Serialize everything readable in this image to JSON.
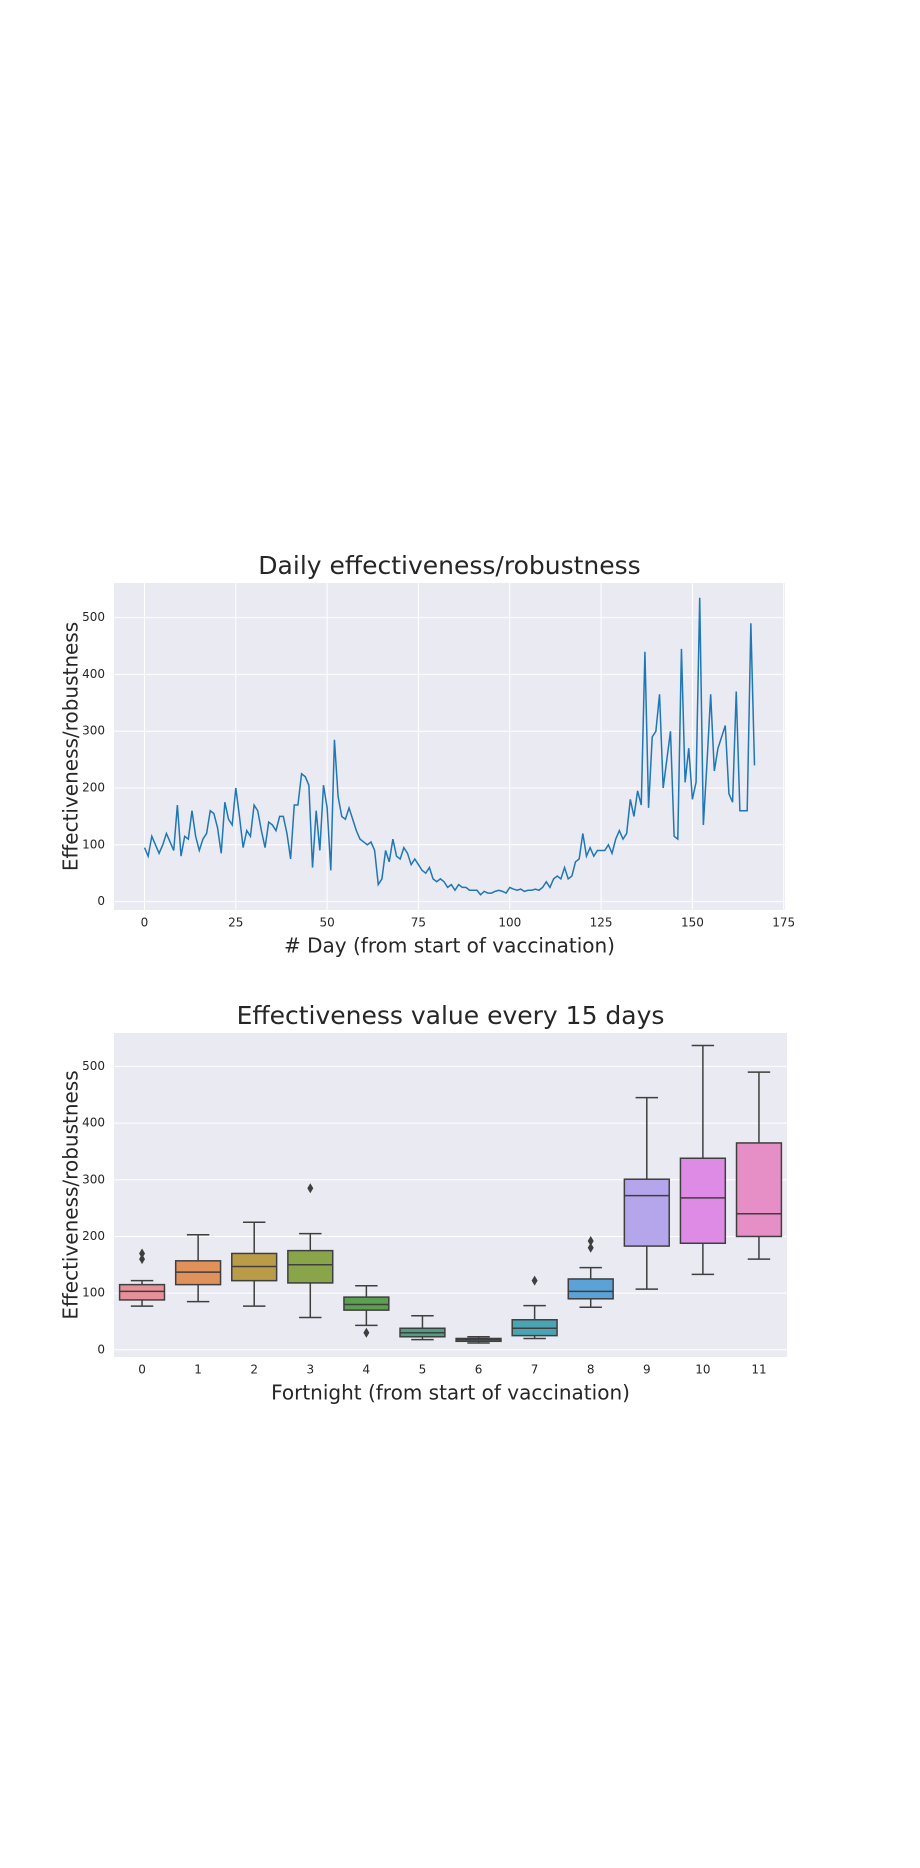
{
  "chart_data": [
    {
      "type": "line",
      "title": "Daily effectiveness/robustness",
      "xlabel": "# Day (from start of vaccination)",
      "ylabel": "Effectiveness/robustness",
      "x": [
        0,
        1,
        2,
        3,
        4,
        5,
        6,
        7,
        8,
        9,
        10,
        11,
        12,
        13,
        14,
        15,
        16,
        17,
        18,
        19,
        20,
        21,
        22,
        23,
        24,
        25,
        26,
        27,
        28,
        29,
        30,
        31,
        32,
        33,
        34,
        35,
        36,
        37,
        38,
        39,
        40,
        41,
        42,
        43,
        44,
        45,
        46,
        47,
        48,
        49,
        50,
        51,
        52,
        53,
        54,
        55,
        56,
        57,
        58,
        59,
        60,
        61,
        62,
        63,
        64,
        65,
        66,
        67,
        68,
        69,
        70,
        71,
        72,
        73,
        74,
        75,
        76,
        77,
        78,
        79,
        80,
        81,
        82,
        83,
        84,
        85,
        86,
        87,
        88,
        89,
        90,
        91,
        92,
        93,
        94,
        95,
        96,
        97,
        98,
        99,
        100,
        101,
        102,
        103,
        104,
        105,
        106,
        107,
        108,
        109,
        110,
        111,
        112,
        113,
        114,
        115,
        116,
        117,
        118,
        119,
        120,
        121,
        122,
        123,
        124,
        125,
        126,
        127,
        128,
        129,
        130,
        131,
        132,
        133,
        134,
        135,
        136,
        137,
        138,
        139,
        140,
        141,
        142,
        143,
        144,
        145,
        146,
        147,
        148,
        149,
        150,
        151,
        152,
        153,
        154,
        155,
        156,
        157,
        158,
        159,
        160,
        161,
        162,
        163,
        164,
        165,
        166,
        167
      ],
      "values": [
        95,
        80,
        115,
        100,
        85,
        100,
        120,
        105,
        90,
        170,
        80,
        115,
        110,
        160,
        115,
        90,
        110,
        120,
        160,
        155,
        130,
        85,
        175,
        145,
        135,
        200,
        150,
        95,
        125,
        115,
        170,
        160,
        125,
        95,
        140,
        135,
        125,
        150,
        150,
        120,
        75,
        170,
        170,
        225,
        220,
        205,
        60,
        160,
        90,
        205,
        165,
        55,
        285,
        185,
        150,
        145,
        165,
        145,
        125,
        110,
        105,
        100,
        105,
        90,
        30,
        40,
        90,
        70,
        110,
        80,
        75,
        95,
        85,
        65,
        75,
        65,
        55,
        50,
        60,
        40,
        35,
        40,
        35,
        25,
        30,
        20,
        30,
        25,
        25,
        20,
        20,
        20,
        12,
        18,
        15,
        15,
        18,
        20,
        18,
        15,
        25,
        22,
        20,
        22,
        18,
        20,
        20,
        22,
        20,
        25,
        35,
        25,
        40,
        45,
        40,
        60,
        40,
        45,
        70,
        75,
        120,
        80,
        95,
        80,
        90,
        90,
        90,
        100,
        85,
        110,
        125,
        110,
        120,
        180,
        150,
        195,
        170,
        440,
        165,
        290,
        300,
        365,
        200,
        250,
        300,
        115,
        110,
        445,
        210,
        270,
        180,
        210,
        535,
        135,
        245,
        365,
        230,
        270,
        290,
        310,
        190,
        175,
        370,
        160,
        160,
        160,
        490,
        240
      ],
      "color": "#1f77b4",
      "xlim": [
        -8.35,
        175.35
      ],
      "xticks": [
        0,
        25,
        50,
        75,
        100,
        125,
        150,
        175
      ],
      "ylim": [
        -14.8,
        561
      ],
      "yticks": [
        0,
        100,
        200,
        300,
        400,
        500
      ],
      "grid": true
    },
    {
      "type": "box",
      "title": "Effectiveness value every 15 days",
      "xlabel": "Fortnight (from start of vaccination)",
      "ylabel": "Effectiveness/robustness",
      "categories": [
        "0",
        "1",
        "2",
        "3",
        "4",
        "5",
        "6",
        "7",
        "8",
        "9",
        "10",
        "11"
      ],
      "boxes": [
        {
          "whislo": 77,
          "q1": 88,
          "med": 103,
          "q3": 115,
          "whishi": 122,
          "fliers": [
            160,
            170
          ]
        },
        {
          "whislo": 85,
          "q1": 115,
          "med": 137,
          "q3": 157,
          "whishi": 203,
          "fliers": []
        },
        {
          "whislo": 77,
          "q1": 122,
          "med": 147,
          "q3": 170,
          "whishi": 225,
          "fliers": []
        },
        {
          "whislo": 57,
          "q1": 118,
          "med": 150,
          "q3": 175,
          "whishi": 205,
          "fliers": [
            285
          ]
        },
        {
          "whislo": 43,
          "q1": 70,
          "med": 80,
          "q3": 93,
          "whishi": 113,
          "fliers": [
            30
          ]
        },
        {
          "whislo": 18,
          "q1": 23,
          "med": 30,
          "q3": 38,
          "whishi": 60,
          "fliers": []
        },
        {
          "whislo": 12,
          "q1": 15,
          "med": 18,
          "q3": 20,
          "whishi": 23,
          "fliers": []
        },
        {
          "whislo": 20,
          "q1": 25,
          "med": 38,
          "q3": 53,
          "whishi": 78,
          "fliers": [
            122
          ]
        },
        {
          "whislo": 75,
          "q1": 90,
          "med": 103,
          "q3": 125,
          "whishi": 145,
          "fliers": [
            180,
            192
          ]
        },
        {
          "whislo": 107,
          "q1": 183,
          "med": 272,
          "q3": 301,
          "whishi": 445,
          "fliers": []
        },
        {
          "whislo": 133,
          "q1": 188,
          "med": 268,
          "q3": 338,
          "whishi": 537,
          "fliers": []
        },
        {
          "whislo": 160,
          "q1": 200,
          "med": 240,
          "q3": 365,
          "whishi": 490,
          "fliers": []
        }
      ],
      "colors": [
        "#e8909a",
        "#e1915a",
        "#b99b48",
        "#8aa44a",
        "#5aa04e",
        "#4ba084",
        "#4fa39a",
        "#4aa4b4",
        "#5ba2d8",
        "#b5a5ea",
        "#de8be6",
        "#e68ec6"
      ],
      "ylim": [
        -12.7,
        559
      ],
      "yticks": [
        0,
        100,
        200,
        300,
        400,
        500
      ],
      "grid": true
    }
  ]
}
